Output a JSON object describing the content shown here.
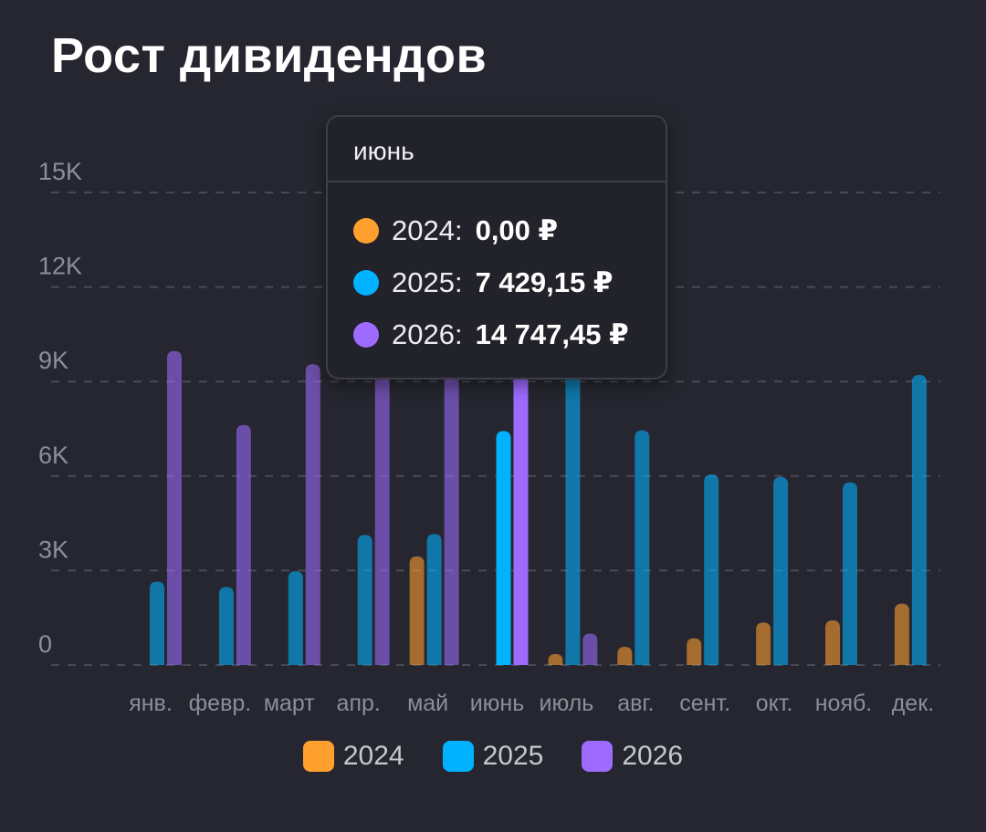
{
  "title": "Рост дивидендов",
  "chart_data": {
    "type": "bar",
    "categories": [
      "янв.",
      "февр.",
      "март",
      "апр.",
      "май",
      "июнь",
      "июль",
      "авг.",
      "сент.",
      "окт.",
      "нояб.",
      "дек."
    ],
    "series": [
      {
        "name": "2024",
        "color": "#ff9f2e",
        "values": [
          0,
          0,
          0,
          0,
          3450,
          0,
          350,
          580,
          850,
          1350,
          1420,
          1950
        ]
      },
      {
        "name": "2025",
        "color": "#00b2ff",
        "values": [
          2650,
          2480,
          2980,
          4130,
          4160,
          7429.15,
          11900,
          7450,
          6050,
          5970,
          5800,
          9210
        ]
      },
      {
        "name": "2026",
        "color": "#9d6bff",
        "values": [
          9970,
          7620,
          9550,
          10300,
          10500,
          14747.45,
          1000,
          0,
          0,
          0,
          0,
          0
        ]
      }
    ],
    "y_ticks": [
      "0",
      "3K",
      "6K",
      "9K",
      "12K",
      "15K"
    ],
    "y_tick_values": [
      0,
      3000,
      6000,
      9000,
      12000,
      15000
    ],
    "ylim": [
      0,
      15000
    ],
    "grid": true,
    "highlighted_category": "июнь",
    "legend_position": "bottom"
  },
  "tooltip": {
    "title": "июнь",
    "rows": [
      {
        "label": "2024:",
        "value": "0,00 ₽",
        "color": "#ff9f2e"
      },
      {
        "label": "2025:",
        "value": "7 429,15 ₽",
        "color": "#00b2ff"
      },
      {
        "label": "2026:",
        "value": "14 747,45 ₽",
        "color": "#9d6bff"
      }
    ]
  },
  "legend": [
    {
      "label": "2024",
      "color": "#ff9f2e"
    },
    {
      "label": "2025",
      "color": "#00b2ff"
    },
    {
      "label": "2026",
      "color": "#9d6bff"
    }
  ]
}
